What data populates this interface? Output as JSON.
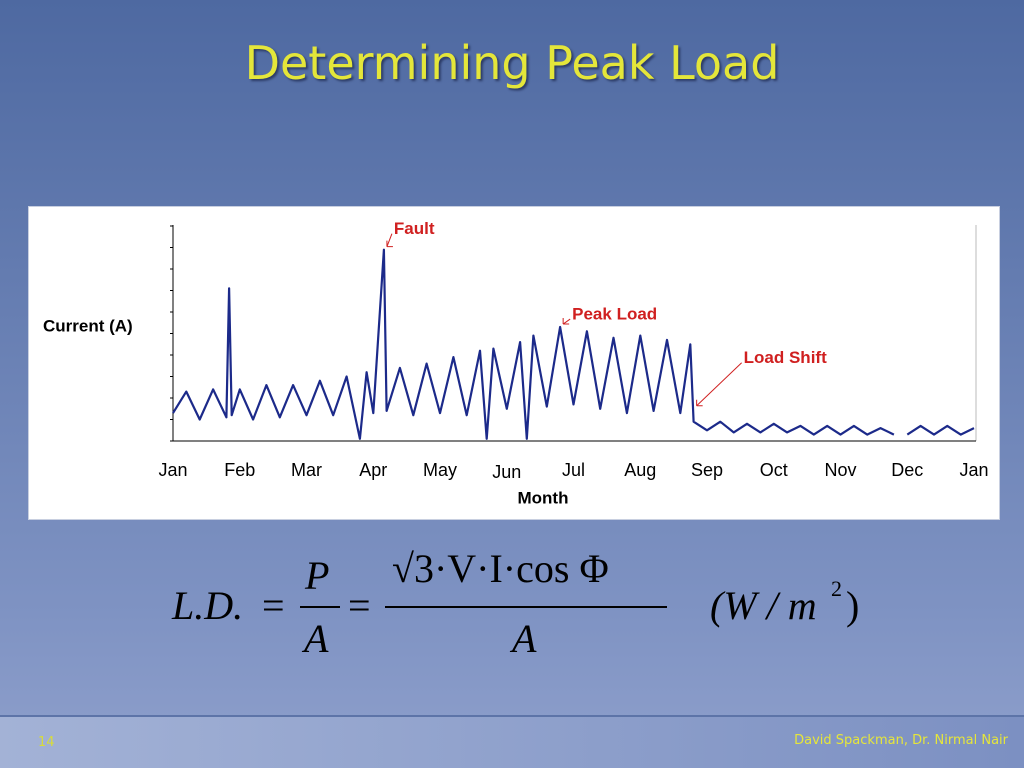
{
  "slide": {
    "title": "Determining Peak Load",
    "page_number": "14",
    "author": "David Spackman, Dr. Nirmal Nair"
  },
  "formula": {
    "lhs": "L.D.",
    "eq1": "=",
    "num1": "P",
    "den1": "A",
    "eq2": "=",
    "num2": "√3·V·I·cos Φ",
    "den2": "A",
    "units": "(W / m",
    "units_exp": "2",
    "units_close": ")"
  },
  "chart_data": {
    "type": "line",
    "y_label": "Current (A)",
    "x_label": "Month",
    "x": [
      0,
      0.2,
      0.4,
      0.6,
      0.8,
      0.84,
      0.88,
      1.0,
      1.2,
      1.4,
      1.6,
      1.8,
      2.0,
      2.2,
      2.4,
      2.6,
      2.8,
      2.9,
      3.0,
      3.16,
      3.2,
      3.4,
      3.6,
      3.8,
      4.0,
      4.2,
      4.4,
      4.6,
      4.7,
      4.8,
      5.0,
      5.2,
      5.3,
      5.4,
      5.6,
      5.8,
      6.0,
      6.2,
      6.4,
      6.6,
      6.8,
      7.0,
      7.2,
      7.4,
      7.6,
      7.75,
      7.8,
      8.0,
      8.2,
      8.4,
      8.6,
      8.8,
      9.0,
      9.2,
      9.4,
      9.6,
      9.8,
      10.0,
      10.2,
      10.4,
      10.6,
      10.8,
      10.9,
      11.0,
      11.2,
      11.4,
      11.6,
      11.8,
      12.0
    ],
    "series": [
      {
        "color": "#1c2a8a",
        "values": [
          1.3,
          2.3,
          1.0,
          2.4,
          1.1,
          7.1,
          1.2,
          2.4,
          1.0,
          2.6,
          1.1,
          2.6,
          1.2,
          2.8,
          1.2,
          3.0,
          0.1,
          3.2,
          1.3,
          8.9,
          1.4,
          3.4,
          1.2,
          3.6,
          1.3,
          3.9,
          1.2,
          4.2,
          0.1,
          4.3,
          1.5,
          4.6,
          0.1,
          4.9,
          1.6,
          5.3,
          1.7,
          5.1,
          1.5,
          4.8,
          1.3,
          4.9,
          1.4,
          4.7,
          1.3,
          4.5,
          0.9,
          0.5,
          0.9,
          0.4,
          0.8,
          0.4,
          0.8,
          0.4,
          0.7,
          0.3,
          0.7,
          0.3,
          0.7,
          0.3,
          0.6,
          0.3,
          null,
          0.3,
          0.7,
          0.3,
          0.7,
          0.3,
          0.6
        ]
      }
    ],
    "xlim": [
      0,
      12
    ],
    "xticks": [
      {
        "value": 0,
        "label": "Jan"
      },
      {
        "value": 1,
        "label": "Feb"
      },
      {
        "value": 2,
        "label": "Mar"
      },
      {
        "value": 3,
        "label": "Apr"
      },
      {
        "value": 4,
        "label": "May"
      },
      {
        "value": 5,
        "label": "Jun"
      },
      {
        "value": 6,
        "label": "Jul"
      },
      {
        "value": 7,
        "label": "Aug"
      },
      {
        "value": 8,
        "label": "Sep"
      },
      {
        "value": 9,
        "label": "Oct"
      },
      {
        "value": 10,
        "label": "Nov"
      },
      {
        "value": 11,
        "label": "Dec"
      },
      {
        "value": 12,
        "label": "Jan"
      }
    ],
    "ylim": [
      0,
      10
    ],
    "yticks": [
      0,
      1,
      2,
      3,
      4,
      5,
      6,
      7,
      8,
      9,
      10
    ],
    "annotations": [
      {
        "text": "Fault",
        "x": 3.16,
        "y": 8.9
      },
      {
        "text": "Peak Load",
        "x": 5.8,
        "y": 5.3
      },
      {
        "text": "Load Shift",
        "x": 7.8,
        "y": 1.5
      }
    ]
  }
}
